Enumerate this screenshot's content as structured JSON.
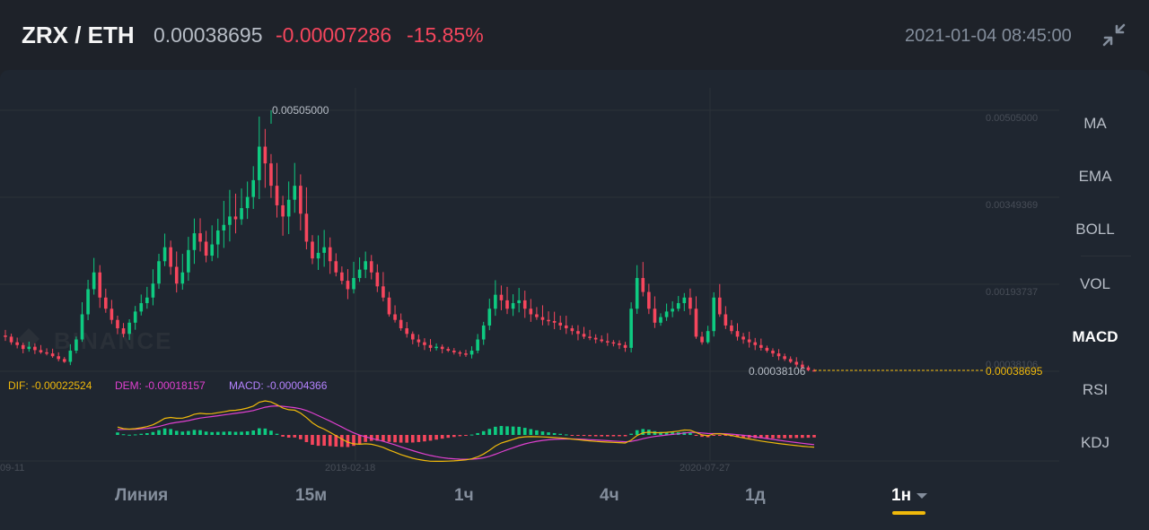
{
  "header": {
    "pair": "ZRX / ETH",
    "last_price": "0.00038695",
    "change": "-0.00007286",
    "change_percent": "-15.85%",
    "datetime": "2021-01-04 08:45:00",
    "collapse_icon": "collapse-arrows-icon"
  },
  "watermark": "BINANCE",
  "side_menu": {
    "items": [
      {
        "label": "MA",
        "active": false
      },
      {
        "label": "EMA",
        "active": false
      },
      {
        "label": "BOLL",
        "active": false
      },
      {
        "label": "VOL",
        "active": false
      },
      {
        "label": "MACD",
        "active": true
      },
      {
        "label": "RSI",
        "active": false
      },
      {
        "label": "KDJ",
        "active": false
      }
    ]
  },
  "timeframes": {
    "items": [
      {
        "label": "Линия",
        "active": false
      },
      {
        "label": "15м",
        "active": false
      },
      {
        "label": "1ч",
        "active": false
      },
      {
        "label": "4ч",
        "active": false
      },
      {
        "label": "1д",
        "active": false
      },
      {
        "label": "1н",
        "active": true
      }
    ]
  },
  "chart_data": [
    {
      "type": "candlestick",
      "y_ticks": [
        "0.00505000",
        "0.00349369",
        "0.00193737",
        "0.00038106"
      ],
      "ylim": [
        0.00038106,
        0.00505
      ],
      "x_ticks": [
        "09-11",
        "2019-02-18",
        "2020-07-27"
      ],
      "max_label": "0.00505000",
      "min_label": "0.00038106",
      "last_price_label": "0.00038695",
      "colors": {
        "up": "#0ecb81",
        "down": "#f6465d",
        "last_line": "#f0b90b"
      },
      "close_series": [
        0.001,
        0.0009,
        0.00085,
        0.00078,
        0.00082,
        0.00076,
        0.00072,
        0.0007,
        0.00065,
        0.0006,
        0.00055,
        0.00075,
        0.00095,
        0.0014,
        0.00185,
        0.00215,
        0.0017,
        0.0015,
        0.0013,
        0.00115,
        0.00105,
        0.00125,
        0.00145,
        0.0016,
        0.0017,
        0.00195,
        0.00235,
        0.0026,
        0.00225,
        0.00195,
        0.00215,
        0.00255,
        0.00285,
        0.0027,
        0.00245,
        0.00265,
        0.0029,
        0.003,
        0.00315,
        0.0031,
        0.0033,
        0.0035,
        0.0038,
        0.0044,
        0.0041,
        0.0037,
        0.00335,
        0.00315,
        0.00345,
        0.0037,
        0.0032,
        0.0027,
        0.0024,
        0.0025,
        0.0026,
        0.00235,
        0.00215,
        0.002,
        0.00185,
        0.00205,
        0.0022,
        0.00235,
        0.00215,
        0.0019,
        0.0017,
        0.0014,
        0.0013,
        0.00115,
        0.00105,
        0.00095,
        0.0009,
        0.00085,
        0.0008,
        0.00082,
        0.00078,
        0.00075,
        0.00072,
        0.0007,
        0.00068,
        0.00075,
        0.00095,
        0.0012,
        0.0015,
        0.00175,
        0.00165,
        0.0015,
        0.0016,
        0.00165,
        0.0015,
        0.0014,
        0.00135,
        0.0013,
        0.00128,
        0.00125,
        0.0012,
        0.00115,
        0.0011,
        0.00105,
        0.001,
        0.00098,
        0.00095,
        0.00092,
        0.0009,
        0.00088,
        0.00085,
        0.0008,
        0.0015,
        0.00205,
        0.0018,
        0.0015,
        0.00125,
        0.00135,
        0.00145,
        0.0015,
        0.0016,
        0.0017,
        0.0015,
        0.001,
        0.0009,
        0.0011,
        0.0017,
        0.0014,
        0.0012,
        0.0011,
        0.001,
        0.00095,
        0.0009,
        0.00085,
        0.0008,
        0.00075,
        0.0007,
        0.00065,
        0.0006,
        0.00055,
        0.0005,
        0.00045,
        0.0004,
        0.00039
      ]
    },
    {
      "type": "macd",
      "labels": {
        "dif": "DIF: -0.00022524",
        "dem": "DEM: -0.00018157",
        "macd": "MACD: -0.00004366"
      },
      "colors": {
        "dif": "#f0b90b",
        "dem": "#e040d0",
        "macd": "#b583ff"
      }
    }
  ]
}
